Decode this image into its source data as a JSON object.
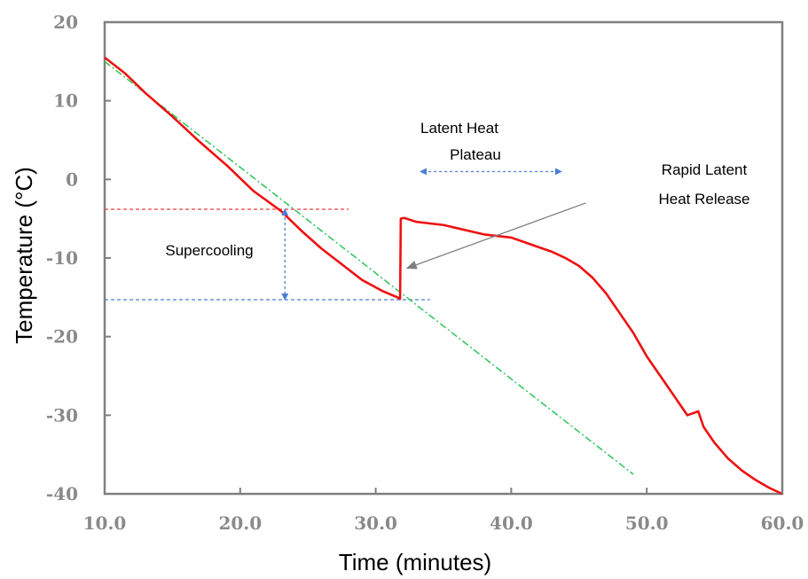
{
  "chart_data": {
    "type": "line",
    "title": "",
    "xlabel": "Time (minutes)",
    "ylabel": "Temperature (°C)",
    "xlim": [
      10,
      60
    ],
    "ylim": [
      -40,
      20
    ],
    "x_ticks": [
      "10.0",
      "20.0",
      "30.0",
      "40.0",
      "50.0",
      "60.0"
    ],
    "y_ticks": [
      "20",
      "10",
      "0",
      "-10",
      "-20",
      "-30",
      "-40"
    ],
    "grid": false,
    "legend": "none",
    "colors": {
      "temperature": "#ee1111",
      "trend": "#2ec45a",
      "supercool_top": "#e84040",
      "supercool_bottom": "#4a7fd4",
      "arrow": "#4a7fd4",
      "pointer": "#7f7f7f",
      "axis": "#7f7f7f"
    },
    "series": [
      {
        "x": [
          10.0,
          11.5,
          13.0,
          15.0,
          17.0,
          19.0,
          21.0,
          23.0,
          24.5,
          26.0,
          27.5,
          29.0,
          30.5,
          31.6,
          31.8,
          31.85,
          32.1,
          33.0,
          34.0,
          35.0,
          36.0,
          37.0,
          38.0,
          39.0,
          40.0,
          41.0,
          42.0,
          43.0,
          44.0,
          45.0,
          46.0,
          47.0,
          48.0,
          49.0,
          50.0,
          51.0,
          52.0,
          53.0,
          53.8,
          54.2,
          55.0,
          56.0,
          57.0,
          58.0,
          59.0,
          60.0
        ],
        "y": [
          15.5,
          13.5,
          11.0,
          8.0,
          4.8,
          1.8,
          -1.5,
          -4.0,
          -6.5,
          -8.8,
          -10.8,
          -12.8,
          -14.2,
          -15.0,
          -15.2,
          -5.0,
          -4.9,
          -5.4,
          -5.6,
          -5.8,
          -6.2,
          -6.6,
          -7.0,
          -7.2,
          -7.4,
          -8.0,
          -8.6,
          -9.2,
          -10.0,
          -11.0,
          -12.5,
          -14.5,
          -17.0,
          -19.5,
          -22.5,
          -25.0,
          -27.5,
          -30.0,
          -29.5,
          -31.5,
          -33.5,
          -35.5,
          -37.0,
          -38.2,
          -39.2,
          -40.0
        ]
      },
      {
        "x": [
          10.0,
          49.0
        ],
        "y": [
          15.0,
          -37.5
        ]
      }
    ],
    "reference_lines": [
      {
        "y": -3.8,
        "x_from": 10.0,
        "x_to": 28.0
      },
      {
        "y": -15.3,
        "x_from": 10.0,
        "x_to": 34.0
      }
    ],
    "annotations": [
      {
        "id": "supercooling",
        "text": "Supercooling",
        "arrow_x": 23.3,
        "arrow_y_from": -3.8,
        "arrow_y_to": -15.3
      },
      {
        "id": "plateau",
        "lines": [
          "Latent Heat",
          "Plateau"
        ],
        "arrow_y": 1.0,
        "arrow_x_from": 33.5,
        "arrow_x_to": 43.5
      },
      {
        "id": "release",
        "lines": [
          "Rapid Latent",
          "Heat Release"
        ],
        "arrow_from": [
          45.5,
          -3.0
        ],
        "arrow_to": [
          32.3,
          -11.3
        ]
      }
    ]
  }
}
